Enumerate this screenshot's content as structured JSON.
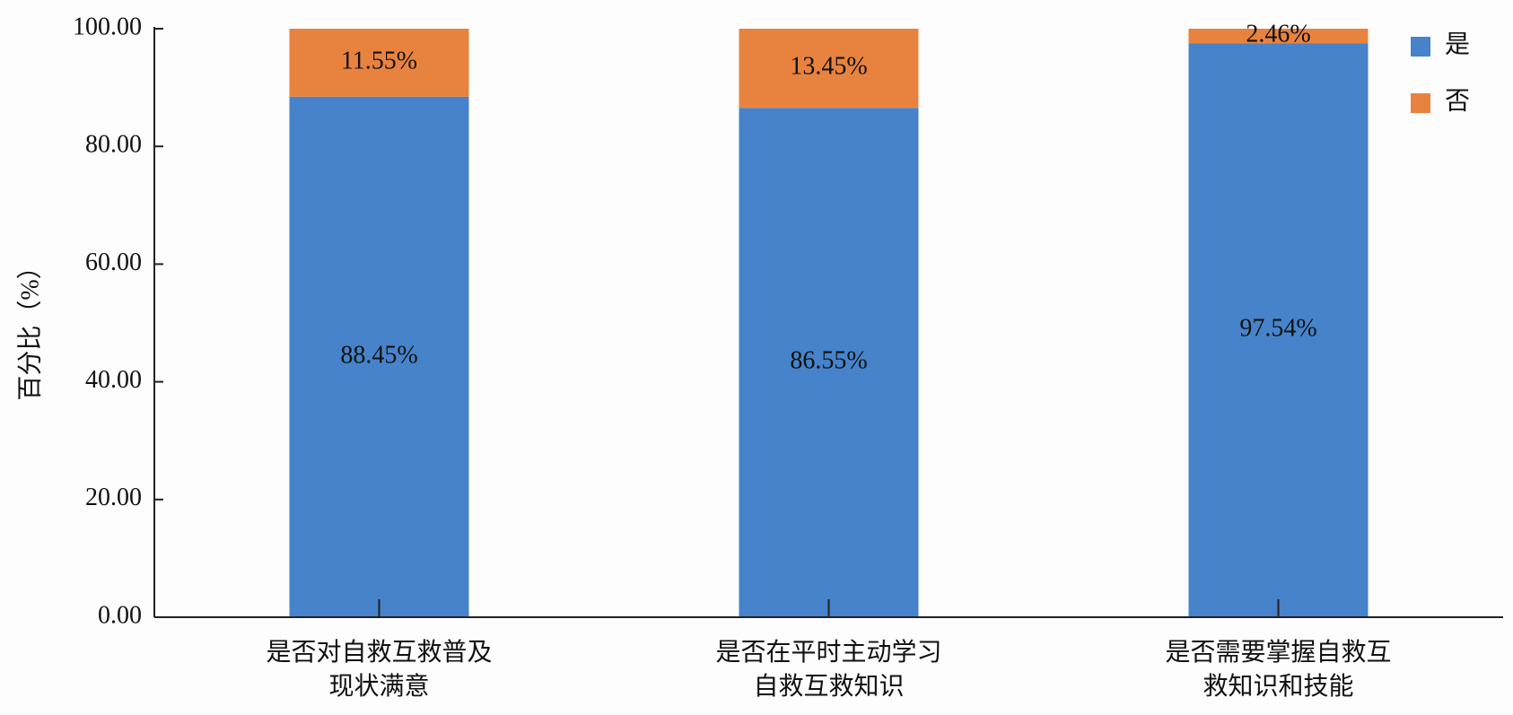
{
  "chart_data": {
    "type": "stacked-bar",
    "y_label": "百分比（%）",
    "categories": [
      "是否对自救互救普及现状满意",
      "是否在平时主动学习自救互救知识",
      "是否需要掌握自救互救知识和技能"
    ],
    "series": [
      {
        "name": "是",
        "color": "#4683ca",
        "values": [
          88.45,
          86.55,
          97.54
        ],
        "value_labels": [
          "88.45%",
          "86.55%",
          "97.54%"
        ]
      },
      {
        "name": "否",
        "color": "#e8833f",
        "values": [
          11.55,
          13.45,
          2.46
        ],
        "value_labels": [
          "11.55%",
          "13.45%",
          "2.46%"
        ]
      }
    ],
    "ylim": [
      0,
      100
    ],
    "yticks": [
      {
        "value": 0,
        "label": "0.00"
      },
      {
        "value": 20,
        "label": "20.00"
      },
      {
        "value": 40,
        "label": "40.00"
      },
      {
        "value": 60,
        "label": "60.00"
      },
      {
        "value": 80,
        "label": "80.00"
      },
      {
        "value": 100,
        "label": "100.00"
      }
    ],
    "legend": "upper right"
  }
}
